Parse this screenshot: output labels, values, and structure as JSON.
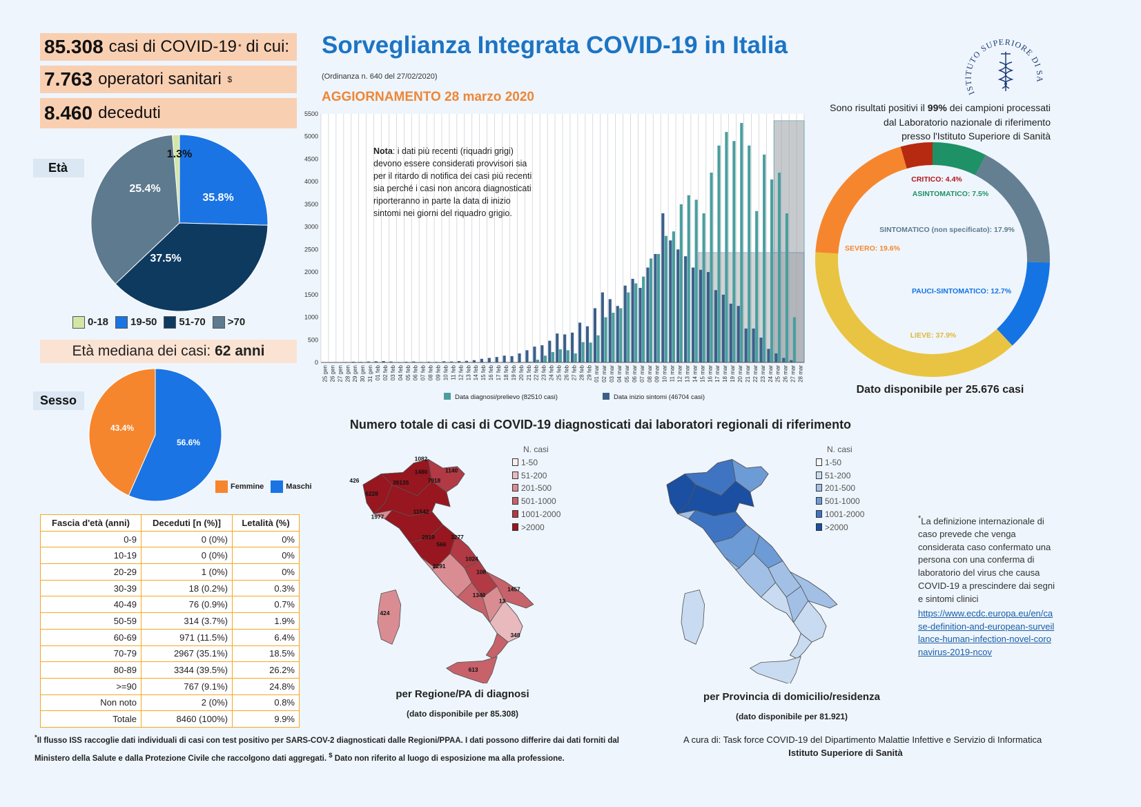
{
  "stats": {
    "cases_value": "85.308",
    "cases_text": "casi di COVID-19",
    "cases_sup": "*",
    "cases_suffix": "di cui:",
    "hcw_value": "7.763",
    "hcw_text": "operatori sanitari",
    "hcw_sup": "$",
    "deaths_value": "8.460",
    "deaths_text": "deceduti"
  },
  "header": {
    "title": "Sorveglianza Integrata COVID-19 in Italia",
    "subtitle": "(Ordinanza n. 640 del 27/02/2020)",
    "update": "AGGIORNAMENTO 28 marzo 2020"
  },
  "age": {
    "label": "Età",
    "median_prefix": "Età mediana dei casi:",
    "median_value": "62 anni"
  },
  "sex": {
    "label": "Sesso"
  },
  "lab": {
    "line1_a": "Sono risultati positivi il",
    "line1_pct": "99%",
    "line1_b": "dei campioni processati",
    "line2": "dal Laboratorio nazionale di riferimento",
    "line3": "presso l'Istituto Superiore di Sanità"
  },
  "donut_caption": "Dato disponibile per 25.676 casi",
  "note": {
    "bold": "Nota",
    "text": ": i dati più recenti (riquadri grigi) devono essere considerati provvisori sia per il ritardo di notifica dei casi più recenti sia perché i casi non ancora diagnosticati riporteranno in parte la data di inizio sintomi nei giorni del riquadro grigio."
  },
  "maps": {
    "title": "Numero totale di casi di COVID-19 diagnosticati dai laboratori regionali di riferimento",
    "left_caption": "per Regione/PA di diagnosi",
    "left_sub": "(dato disponibile per 85.308)",
    "right_caption": "per Provincia di domicilio/residenza",
    "right_sub": "(dato disponibile per 81.921)",
    "legend_title": "N. casi",
    "legend": [
      "1-50",
      "51-200",
      "201-500",
      "501-1000",
      "1001-2000",
      ">2000"
    ],
    "red_colors": [
      "#fbeeee",
      "#e8b9bd",
      "#d98d93",
      "#c7626a",
      "#b13a44",
      "#98161f"
    ],
    "blue_colors": [
      "#f4f8fd",
      "#c9dbf1",
      "#a2c0e6",
      "#6d9bd6",
      "#3f74c2",
      "#1a4fa2"
    ],
    "region_labels": [
      "1082",
      "1480",
      "1140",
      "426",
      "39135",
      "7918",
      "6228",
      "11542",
      "1977",
      "2919",
      "3277",
      "566",
      "1024",
      "2291",
      "108",
      "1457",
      "1340",
      "13",
      "424",
      "348",
      "613"
    ]
  },
  "table": {
    "headers": [
      "Fascia d'età (anni)",
      "Deceduti [n (%)]",
      "Letalità (%)"
    ],
    "rows": [
      [
        "0-9",
        "0 (0%)",
        "0%"
      ],
      [
        "10-19",
        "0 (0%)",
        "0%"
      ],
      [
        "20-29",
        "1 (0%)",
        "0%"
      ],
      [
        "30-39",
        "18 (0.2%)",
        "0.3%"
      ],
      [
        "40-49",
        "76 (0.9%)",
        "0.7%"
      ],
      [
        "50-59",
        "314 (3.7%)",
        "1.9%"
      ],
      [
        "60-69",
        "971 (11.5%)",
        "6.4%"
      ],
      [
        "70-79",
        "2967 (35.1%)",
        "18.5%"
      ],
      [
        "80-89",
        "3344 (39.5%)",
        "26.2%"
      ],
      [
        ">=90",
        "767 (9.1%)",
        "24.8%"
      ],
      [
        "Non noto",
        "2 (0%)",
        "0.8%"
      ],
      [
        "Totale",
        "8460 (100%)",
        "9.9%"
      ]
    ]
  },
  "definition": {
    "text": "La definizione internazionale di caso prevede che venga considerata caso confermato una persona con una conferma di laboratorio del virus che causa COVID-19 a prescindere dai segni e sintomi clinici",
    "sup": "*",
    "link": "https://www.ecdc.europa.eu/en/case-definition-and-european-surveillance-human-infection-novel-coronavirus-2019-ncov"
  },
  "footnote": {
    "line1": "Il flusso ISS raccoglie dati individuali di casi con test positivo per SARS-COV-2 diagnosticati dalle Regioni/PPAA. I dati possono differire dai dati forniti dal",
    "line2": "Ministero della Salute e dalla Protezione Civile che raccolgono dati aggregati.",
    "line2b": "Dato non riferito al luogo di esposizione ma alla professione.",
    "sup1": "*",
    "sup2": "$"
  },
  "credits": {
    "line1": "A cura di:  Task force  COVID-19 del Dipartimento Malattie Infettive e Servizio di Informatica",
    "line2": "Istituto Superiore di Sanità"
  },
  "logo_text": "ISTITUTO SUPERIORE DI SANITÀ",
  "colors": {
    "title_blue": "#1c74c4",
    "orange": "#ee8635",
    "box_peach": "#f9cfb2",
    "bar_teal": "#4a9e9e",
    "bar_navy": "#3a5f8a"
  },
  "chart_data": [
    {
      "type": "pie",
      "labels": [
        "0-18",
        "19-50",
        "51-70",
        ">70"
      ],
      "values": [
        1.3,
        25.4,
        37.5,
        35.8
      ],
      "data_labels": [
        "1.3%",
        "25.4%",
        "37.5%",
        "35.8%"
      ],
      "colors": [
        "#d4e6a5",
        "#1a74e4",
        "#0e3a60",
        "#5d7a8f"
      ],
      "legend": "bottom"
    },
    {
      "type": "pie",
      "labels": [
        "Femmine",
        "Maschi"
      ],
      "values": [
        43.4,
        56.6
      ],
      "data_labels": [
        "43.4%",
        "56.6%"
      ],
      "colors": [
        "#f5862e",
        "#1a74e4"
      ],
      "legend": "bottom-right"
    },
    {
      "type": "bar",
      "categories": [
        "25 gen",
        "26 gen",
        "27 gen",
        "28 gen",
        "29 gen",
        "30 gen",
        "31 gen",
        "01 feb",
        "02 feb",
        "03 feb",
        "04 feb",
        "05 feb",
        "06 feb",
        "07 feb",
        "08 feb",
        "09 feb",
        "10 feb",
        "11 feb",
        "12 feb",
        "13 feb",
        "14 feb",
        "15 feb",
        "16 feb",
        "17 feb",
        "18 feb",
        "19 feb",
        "20 feb",
        "21 feb",
        "22 feb",
        "23 feb",
        "24 feb",
        "25 feb",
        "26 feb",
        "27 feb",
        "28 feb",
        "29 feb",
        "01 mar",
        "02 mar",
        "03 mar",
        "04 mar",
        "05 mar",
        "06 mar",
        "07 mar",
        "08 mar",
        "09 mar",
        "10 mar",
        "11 mar",
        "12 mar",
        "13 mar",
        "14 mar",
        "15 mar",
        "16 mar",
        "17 mar",
        "18 mar",
        "19 mar",
        "20 mar",
        "21 mar",
        "22 mar",
        "23 mar",
        "24 mar",
        "25 mar",
        "26 mar",
        "27 mar",
        "28 mar"
      ],
      "series": [
        {
          "name": "Data diagnosi/prelievo (82510 casi)",
          "values": [
            0,
            0,
            0,
            0,
            0,
            0,
            0,
            0,
            0,
            0,
            0,
            0,
            0,
            0,
            0,
            0,
            0,
            0,
            0,
            0,
            0,
            0,
            0,
            0,
            0,
            0,
            3,
            17,
            60,
            150,
            230,
            290,
            270,
            200,
            450,
            440,
            600,
            1000,
            1100,
            1200,
            1550,
            1750,
            1900,
            2300,
            2400,
            2800,
            2900,
            3500,
            3700,
            3600,
            3300,
            4200,
            4800,
            5100,
            4900,
            5300,
            4800,
            3350,
            4600,
            4050,
            4200,
            3300,
            1000,
            0
          ]
        },
        {
          "name": "Data inizio sintomi (46704 casi)",
          "values": [
            2,
            5,
            3,
            10,
            15,
            12,
            20,
            25,
            30,
            20,
            10,
            15,
            20,
            10,
            15,
            12,
            25,
            20,
            30,
            35,
            50,
            80,
            100,
            120,
            150,
            140,
            200,
            270,
            350,
            380,
            480,
            640,
            620,
            660,
            880,
            800,
            1200,
            1550,
            1400,
            1250,
            1700,
            1850,
            1650,
            2100,
            2400,
            3300,
            2700,
            2500,
            2350,
            2100,
            2050,
            2000,
            1600,
            1500,
            1300,
            1250,
            750,
            750,
            550,
            300,
            200,
            100,
            50,
            0
          ]
        }
      ],
      "ylim": [
        0,
        5500
      ],
      "yticks": [
        0,
        500,
        1000,
        1500,
        2000,
        2500,
        3000,
        3500,
        4000,
        4500,
        5000,
        5500
      ],
      "legend": "bottom"
    },
    {
      "type": "pie",
      "labels": [
        "CRITICO: 4.4%",
        "ASINTOMATICO: 7.5%",
        "SINTOMATICO (non specificato): 17.9%",
        "PAUCI-SINTOMATICO: 12.7%",
        "LIEVE: 37.9%",
        "SEVERO: 19.6%"
      ],
      "values": [
        4.4,
        7.5,
        17.9,
        12.7,
        37.9,
        19.6
      ],
      "colors": [
        "#b52a10",
        "#1e9166",
        "#647f91",
        "#1474e4",
        "#e9c442",
        "#f6862e"
      ],
      "label_colors": [
        "#b5121b",
        "#1e9166",
        "#5d7a8f",
        "#1474e4",
        "#e0b83a",
        "#f6862e"
      ],
      "hole": true
    }
  ]
}
